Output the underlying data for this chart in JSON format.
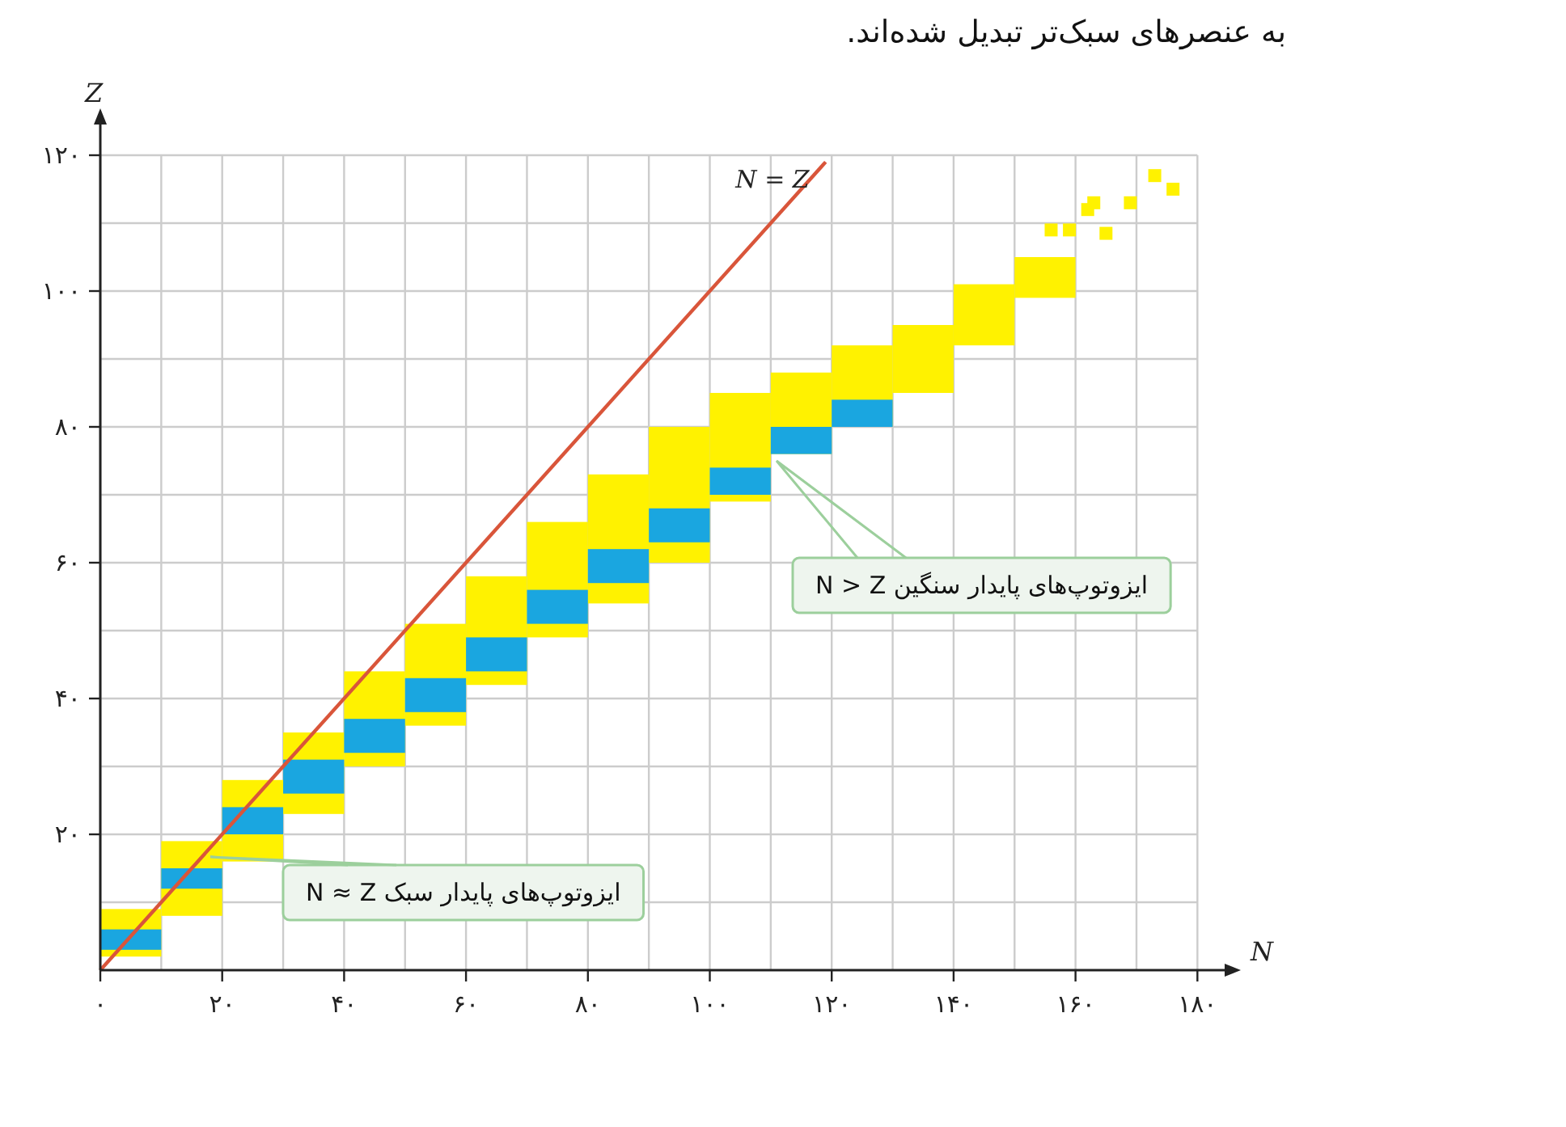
{
  "chart_data": {
    "type": "bar",
    "xlabel": "N",
    "ylabel": "Z",
    "xlim": [
      0,
      185
    ],
    "ylim": [
      0,
      125
    ],
    "xticks": [
      {
        "value": 0,
        "label": "۰"
      },
      {
        "value": 10,
        "label": null
      },
      {
        "value": 20,
        "label": "۲۰"
      },
      {
        "value": 30,
        "label": null
      },
      {
        "value": 40,
        "label": "۴۰"
      },
      {
        "value": 50,
        "label": null
      },
      {
        "value": 60,
        "label": "۶۰"
      },
      {
        "value": 70,
        "label": null
      },
      {
        "value": 80,
        "label": "۸۰"
      },
      {
        "value": 90,
        "label": null
      },
      {
        "value": 100,
        "label": "۱۰۰"
      },
      {
        "value": 110,
        "label": null
      },
      {
        "value": 120,
        "label": "۱۲۰"
      },
      {
        "value": 130,
        "label": null
      },
      {
        "value": 140,
        "label": "۱۴۰"
      },
      {
        "value": 150,
        "label": null
      },
      {
        "value": 160,
        "label": "۱۶۰"
      },
      {
        "value": 170,
        "label": null
      },
      {
        "value": 180,
        "label": "۱۸۰"
      }
    ],
    "yticks": [
      {
        "value": 10,
        "label": null
      },
      {
        "value": 20,
        "label": "۲۰"
      },
      {
        "value": 30,
        "label": null
      },
      {
        "value": 40,
        "label": "۴۰"
      },
      {
        "value": 50,
        "label": null
      },
      {
        "value": 60,
        "label": "۶۰"
      },
      {
        "value": 70,
        "label": null
      },
      {
        "value": 80,
        "label": "۸۰"
      },
      {
        "value": 90,
        "label": null
      },
      {
        "value": 100,
        "label": "۱۰۰"
      },
      {
        "value": 110,
        "label": null
      },
      {
        "value": 120,
        "label": "۱۲۰"
      }
    ],
    "grid": true,
    "legend": false,
    "series": [
      {
        "color": "#fff200",
        "x": [
          5,
          15,
          25,
          35,
          45,
          55,
          65,
          75,
          85,
          95,
          105,
          115,
          125,
          135,
          145,
          155
        ],
        "base": [
          2,
          8,
          16,
          23,
          30,
          36,
          42,
          49,
          54,
          60,
          69,
          76,
          80,
          85,
          92,
          99
        ],
        "values": [
          7,
          11,
          12,
          12,
          14,
          15,
          16,
          17,
          19,
          20,
          16,
          12,
          12,
          10,
          9,
          6
        ]
      },
      {
        "type": "scatter",
        "marker": "square",
        "color": "#fff200",
        "x": [
          156,
          159,
          162,
          163,
          165,
          169,
          173,
          176
        ],
        "values": [
          109,
          109,
          112,
          113,
          108.5,
          113,
          117,
          115
        ]
      },
      {
        "color": "#1aa6e0",
        "x": [
          5,
          15,
          25,
          35,
          45,
          55,
          65,
          75,
          85,
          95,
          105,
          115,
          125
        ],
        "base": [
          3,
          12,
          20,
          26,
          32,
          38,
          44,
          51,
          57,
          63,
          70,
          76,
          80
        ],
        "values": [
          3,
          3,
          4,
          5,
          5,
          5,
          5,
          5,
          5,
          5,
          4,
          4,
          4
        ]
      },
      {
        "type": "line",
        "name": "N = Z",
        "color": "#d9553a",
        "x": [
          0,
          119
        ],
        "values": [
          0,
          119
        ]
      }
    ],
    "annotations": [
      "به عنصرهای سبک‌تر تبدیل شده‌اند.",
      "ایزوتوپ‌های پایدار سنگین N > Z",
      "ایزوتوپ‌های پایدار سبک N ≈ Z"
    ]
  }
}
